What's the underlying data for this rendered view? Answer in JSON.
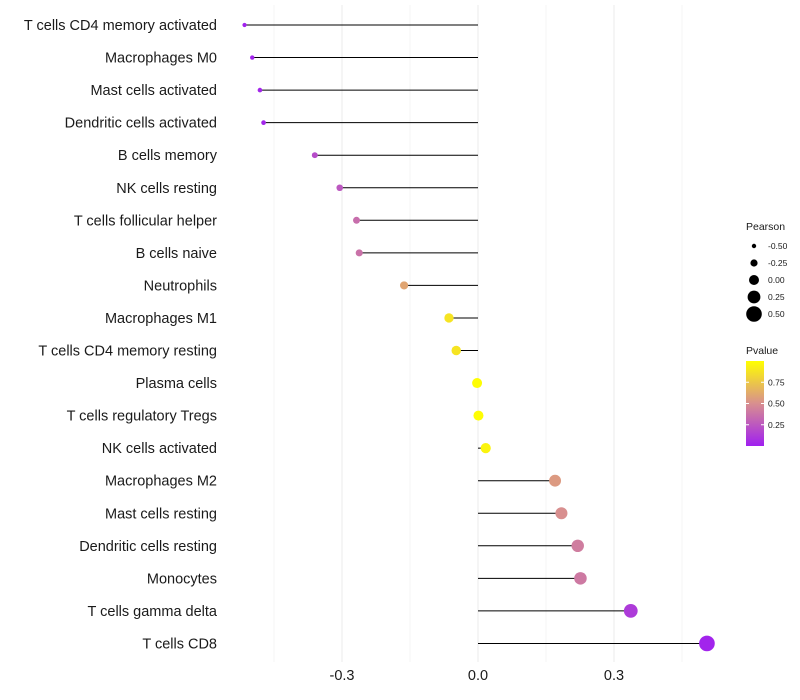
{
  "chart_data": {
    "type": "lollipop",
    "orientation": "horizontal",
    "title": "",
    "xlabel": "",
    "ylabel": "",
    "xlim": [
      -0.52,
      0.58
    ],
    "xticks": [
      -0.3,
      0.0,
      0.3
    ],
    "xtick_labels": [
      "-0.3",
      "0.0",
      "0.3"
    ],
    "grid": "vertical",
    "categories": [
      "T cells CD4 memory activated",
      "Macrophages M0",
      "Mast cells activated",
      "Dendritic cells activated",
      "B cells memory",
      "NK cells resting",
      "T cells follicular helper",
      "B cells naive",
      "Neutrophils",
      "Macrophages M1",
      "T cells CD4 memory resting",
      "Plasma cells",
      "T cells regulatory  Tregs ",
      "NK cells activated",
      "Macrophages M2",
      "Mast cells resting",
      "Dendritic cells resting",
      "Monocytes",
      "T cells gamma delta",
      "T cells CD8"
    ],
    "pearson": [
      -0.515,
      -0.498,
      -0.481,
      -0.473,
      -0.36,
      -0.305,
      -0.268,
      -0.262,
      -0.163,
      -0.064,
      -0.048,
      -0.002,
      0.001,
      0.017,
      0.17,
      0.184,
      0.22,
      0.226,
      0.337,
      0.505
    ],
    "pvalue": [
      0.01,
      0.02,
      0.03,
      0.03,
      0.2,
      0.25,
      0.35,
      0.37,
      0.6,
      0.88,
      0.88,
      0.99,
      0.99,
      0.95,
      0.55,
      0.5,
      0.42,
      0.4,
      0.12,
      0.02
    ],
    "size_legend": {
      "title": "Pearson",
      "labels": [
        "-0.50",
        "-0.25",
        "0.00",
        "0.25",
        "0.50"
      ],
      "values": [
        -0.5,
        -0.25,
        0.0,
        0.25,
        0.5
      ]
    },
    "color_legend": {
      "title": "Pvalue",
      "labels": [
        "0.25",
        "0.50",
        "0.75"
      ],
      "values": [
        0.25,
        0.5,
        0.75
      ],
      "range": [
        0.0,
        1.0
      ],
      "low_color": "#a020f0",
      "mid_color": "#d88f8f",
      "high_color": "#ffff00"
    },
    "legend_position": "right"
  }
}
